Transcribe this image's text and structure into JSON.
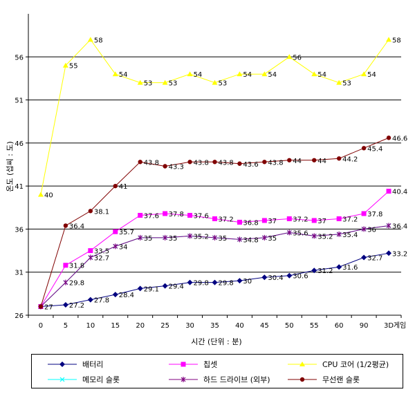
{
  "chart_data": {
    "type": "line",
    "title": "",
    "xlabel": "시간 (단위 : 분)",
    "ylabel": "온도 (섭씨 : 도)",
    "ylim": [
      26,
      61
    ],
    "yticks": [
      26,
      31,
      36,
      41,
      46,
      51,
      56
    ],
    "categories": [
      "0",
      "5",
      "10",
      "15",
      "20",
      "25",
      "30",
      "35",
      "40",
      "45",
      "50",
      "55",
      "60",
      "90",
      "3D 게임"
    ],
    "grid": "horizontal",
    "legend_position": "bottom",
    "series": [
      {
        "name": "배터리",
        "color": "#000080",
        "marker": "diamond",
        "values": [
          27,
          27.2,
          27.8,
          28.4,
          29.1,
          29.4,
          29.8,
          29.8,
          30,
          30.4,
          30.6,
          31.2,
          31.6,
          32.7,
          33.2
        ],
        "labels": [
          "27",
          "27.2",
          "27.8",
          "28.4",
          "29.1",
          "29.4",
          "29.8",
          "29.8",
          "30",
          "30.4",
          "30.6",
          "31.2",
          "31.6",
          "32.7",
          "33.2"
        ]
      },
      {
        "name": "칩셋",
        "color": "#ff00ff",
        "marker": "square",
        "values": [
          27,
          31.8,
          33.5,
          35.7,
          37.6,
          37.8,
          37.6,
          37.2,
          36.8,
          37,
          37.2,
          37,
          37.2,
          37.8,
          40.4
        ],
        "labels": [
          "",
          "31.8",
          "33.5",
          "35.7",
          "37.6",
          "37.8",
          "37.6",
          "37.2",
          "36.8",
          "37",
          "37.2",
          "37",
          "37.2",
          "37.8",
          "40.4"
        ]
      },
      {
        "name": "CPU 코어 (1/2평균)",
        "color": "#ffff00",
        "marker": "triangle",
        "values": [
          40,
          55,
          58,
          54,
          53,
          53,
          54,
          53,
          54,
          54,
          56,
          54,
          53,
          54,
          58
        ],
        "labels": [
          "40",
          "55",
          "58",
          "54",
          "53",
          "53",
          "54",
          "53",
          "54",
          "54",
          "56",
          "54",
          "53",
          "54",
          "58"
        ]
      },
      {
        "name": "메모리 슬롯",
        "color": "#00ffff",
        "marker": "x",
        "values": [
          27,
          29.8,
          32.7,
          34,
          35,
          35,
          35.2,
          35,
          34.8,
          35,
          35.6,
          35.2,
          35.4,
          36,
          36.4
        ],
        "labels": [
          "",
          "",
          "",
          "",
          "",
          "",
          "",
          "",
          "",
          "",
          "",
          "",
          "",
          "",
          ""
        ]
      },
      {
        "name": "하드 드라이브 (외부)",
        "color": "#800080",
        "marker": "star",
        "values": [
          27,
          29.8,
          32.7,
          34,
          35,
          35,
          35.2,
          35,
          34.8,
          35,
          35.6,
          35.2,
          35.4,
          36,
          36.4
        ],
        "labels": [
          "",
          "29.8",
          "32.7",
          "34",
          "35",
          "35",
          "35.2",
          "35",
          "34.8",
          "35",
          "35.6",
          "35.2",
          "35.4",
          "36",
          "36.4"
        ]
      },
      {
        "name": "무선랜 슬롯",
        "color": "#800000",
        "marker": "circle",
        "values": [
          27,
          36.4,
          38.1,
          41,
          43.8,
          43.3,
          43.8,
          43.8,
          43.6,
          43.8,
          44,
          44,
          44.2,
          45.4,
          46.6
        ],
        "labels": [
          "",
          "36.4",
          "38.1",
          "41",
          "43.8",
          "43.3",
          "43.8",
          "43.8",
          "43.6",
          "43.8",
          "44",
          "44",
          "44.2",
          "45.4",
          "46.6"
        ]
      }
    ]
  },
  "legend": {
    "items": [
      {
        "label": "배터리"
      },
      {
        "label": "칩셋"
      },
      {
        "label": "CPU 코어 (1/2평균)"
      },
      {
        "label": "메모리 슬롯"
      },
      {
        "label": "하드 드라이브 (외부)"
      },
      {
        "label": "무선랜 슬롯"
      }
    ]
  }
}
